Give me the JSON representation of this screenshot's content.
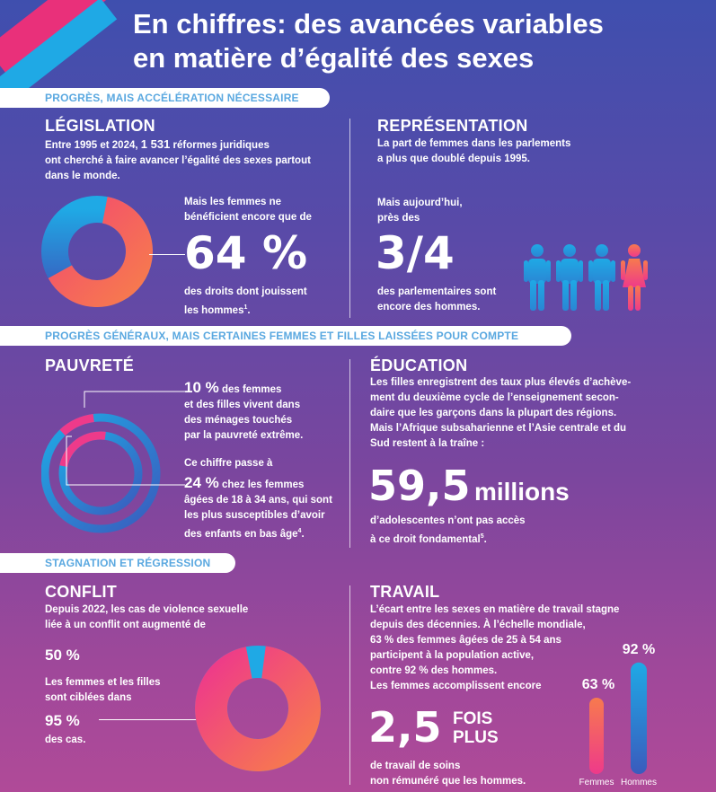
{
  "title_line1": "En chiffres: des avancées variables",
  "title_line2": "en matière d’égalité des sexes",
  "sections": {
    "s1": "PROGRÈS, MAIS ACCÉLÉRATION NÉCESSAIRE",
    "s2": "PROGRÈS GÉNÉRAUX, MAIS CERTAINES FEMMES ET FILLES LAISSÉES POUR COMPTE",
    "s3": "STAGNATION ET RÉGRESSION"
  },
  "legislation": {
    "heading": "LÉGISLATION",
    "line1_a": "Entre 1995 et 2024, ",
    "line1_b": "1 531",
    "line1_c": " réformes juridiques",
    "line2": "ont cherché à faire avancer l’égalité des sexes partout",
    "line3": "dans le monde.",
    "lead1": "Mais les femmes ne",
    "lead2": "bénéficient encore que de",
    "big": "64 %",
    "tail1": "des droits dont jouissent",
    "tail2": "les hommes",
    "tail2_sup": "1",
    "tail2_end": "."
  },
  "representation": {
    "heading": "REPRÉSENTATION",
    "line1": "La part de femmes dans les parlements",
    "line2": "a plus que doublé depuis 1995.",
    "lead1": "Mais aujourd’hui,",
    "lead2": "près des",
    "big": "3/4",
    "tail1": "des parlementaires sont",
    "tail2": "encore des hommes."
  },
  "pauvrete": {
    "heading": "PAUVRETÉ",
    "p1_big": "10 %",
    "p1_a": " des femmes",
    "p1_l2": "et des filles vivent dans",
    "p1_l3": "des ménages touchés",
    "p1_l4": "par la pauvreté extrême.",
    "p2_l1": "Ce chiffre passe à",
    "p2_big": "24 %",
    "p2_a": " chez les femmes",
    "p2_l3": "âgées de 18 à 34 ans, qui sont",
    "p2_l4": "les plus susceptibles d’avoir",
    "p2_l5": "des enfants en bas âge",
    "p2_sup": "4",
    "p2_end": "."
  },
  "education": {
    "heading": "ÉDUCATION",
    "l1": "Les filles enregistrent des taux plus élevés d’achève-",
    "l2": "ment du deuxième cycle de l’enseignement secon-",
    "l3": "daire que les garçons dans la plupart des régions.",
    "l4": "Mais l’Afrique subsaharienne et l’Asie centrale et du",
    "l5": "Sud restent à la traîne :",
    "big": "59,5",
    "big_unit": "millions",
    "tail1": "d’adolescentes n’ont pas accès",
    "tail2": "à ce droit fondamental",
    "tail2_sup": "5",
    "tail2_end": "."
  },
  "conflit": {
    "heading": "CONFLIT",
    "l1_a": "Depuis 2022, les cas de ",
    "l1_b": "violence sexuelle",
    "l2": "liée à un conflit ont augmenté de",
    "v1": "50 %",
    "l3": "Les femmes et les filles",
    "l4": "sont ciblées dans",
    "v2": "95 %",
    "l5": "des cas."
  },
  "travail": {
    "heading": "TRAVAIL",
    "l1": "L’écart entre les sexes en matière de travail stagne",
    "l2": "depuis des décennies. À l’échelle mondiale,",
    "l3": "63 % des femmes âgées de 25 à 54 ans",
    "l4": "participent à la population active,",
    "l5": "contre 92 % des hommes.",
    "l6": "Les femmes accomplissent encore",
    "big": "2,5",
    "big_unit1": "FOIS",
    "big_unit2": "PLUS",
    "tail1": "de travail de soins",
    "tail2": "non rémunéré que les hommes.",
    "bar_women_label": "63 %",
    "bar_men_label": "92 %",
    "cat_women": "Femmes",
    "cat_men": "Hommes",
    "women_value": 63,
    "men_value": 92
  },
  "charts": {
    "legislation_share": 64,
    "conflit_share": 95,
    "pauvrete_outer": 10,
    "pauvrete_inner": 24
  },
  "colors": {
    "pink": "#ee3a8a",
    "orange": "#f77a4e",
    "blue": "#1fa9e5",
    "darkblue": "#3a5bbd"
  }
}
